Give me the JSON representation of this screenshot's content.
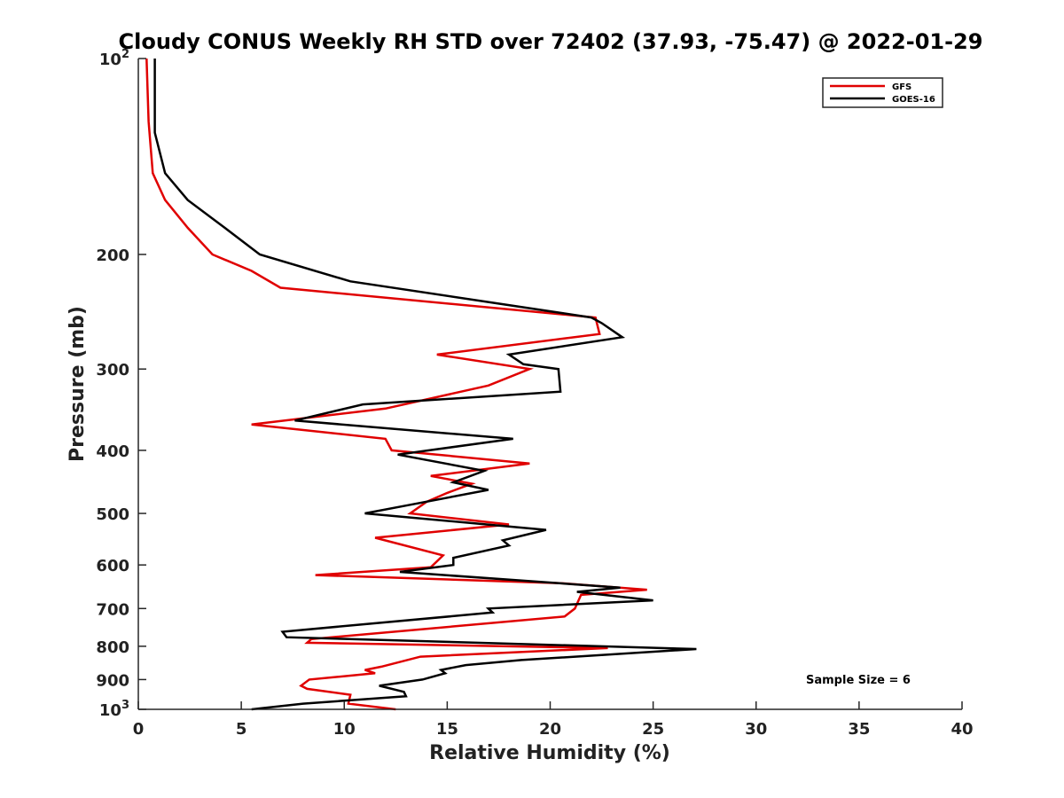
{
  "chart_data": {
    "type": "line",
    "title": "Cloudy CONUS Weekly RH STD over 72402 (37.93, -75.47) @ 2022-01-29",
    "xlabel": "Relative Humidity (%)",
    "ylabel": "Pressure (mb)",
    "xlim": [
      0,
      40
    ],
    "ylim": [
      100,
      1000
    ],
    "y_scale": "log",
    "y_reversed": true,
    "x_ticks": [
      0,
      5,
      10,
      15,
      20,
      25,
      30,
      35,
      40
    ],
    "y_ticks": [
      {
        "value": 100,
        "base": "10",
        "exp": "2"
      },
      {
        "value": 200,
        "label": "200"
      },
      {
        "value": 300,
        "label": "300"
      },
      {
        "value": 400,
        "label": "400"
      },
      {
        "value": 500,
        "label": "500"
      },
      {
        "value": 600,
        "label": "600"
      },
      {
        "value": 700,
        "label": "700"
      },
      {
        "value": 800,
        "label": "800"
      },
      {
        "value": 900,
        "label": "900"
      },
      {
        "value": 1000,
        "base": "10",
        "exp": "3"
      }
    ],
    "grid": false,
    "legend_position": "top-right",
    "annotation": "Sample Size = 6",
    "series": [
      {
        "name": "GFS",
        "color": "#e00000",
        "points": [
          [
            0.4,
            100
          ],
          [
            0.5,
            125
          ],
          [
            0.7,
            150
          ],
          [
            1.3,
            165
          ],
          [
            2.4,
            182
          ],
          [
            3.6,
            200
          ],
          [
            5.5,
            212
          ],
          [
            6.9,
            225
          ],
          [
            22.2,
            250
          ],
          [
            22.4,
            265
          ],
          [
            14.5,
            285
          ],
          [
            19.0,
            300
          ],
          [
            17.0,
            318
          ],
          [
            12.0,
            345
          ],
          [
            5.5,
            365
          ],
          [
            12.0,
            384
          ],
          [
            12.3,
            400
          ],
          [
            19.0,
            419
          ],
          [
            14.2,
            438
          ],
          [
            16.2,
            450
          ],
          [
            15.0,
            465
          ],
          [
            14.0,
            480
          ],
          [
            13.2,
            500
          ],
          [
            18.0,
            520
          ],
          [
            11.5,
            545
          ],
          [
            14.8,
            580
          ],
          [
            14.2,
            605
          ],
          [
            8.6,
            622
          ],
          [
            20.5,
            640
          ],
          [
            24.7,
            655
          ],
          [
            21.5,
            667
          ],
          [
            21.2,
            700
          ],
          [
            20.7,
            720
          ],
          [
            8.4,
            780
          ],
          [
            8.2,
            790
          ],
          [
            22.8,
            805
          ],
          [
            13.7,
            830
          ],
          [
            11.8,
            860
          ],
          [
            11.0,
            870
          ],
          [
            11.5,
            880
          ],
          [
            8.3,
            900
          ],
          [
            7.9,
            920
          ],
          [
            8.2,
            930
          ],
          [
            10.3,
            950
          ],
          [
            10.2,
            980
          ],
          [
            12.5,
            1000
          ]
        ]
      },
      {
        "name": "GOES-16",
        "color": "#000000",
        "points": [
          [
            0.8,
            100
          ],
          [
            0.8,
            125
          ],
          [
            0.8,
            130
          ],
          [
            1.3,
            150
          ],
          [
            2.4,
            165
          ],
          [
            4.2,
            182
          ],
          [
            5.9,
            200
          ],
          [
            10.3,
            220
          ],
          [
            22.0,
            250
          ],
          [
            22.5,
            255
          ],
          [
            23.5,
            268
          ],
          [
            18.0,
            285
          ],
          [
            18.7,
            295
          ],
          [
            20.4,
            300
          ],
          [
            20.5,
            325
          ],
          [
            10.9,
            340
          ],
          [
            7.6,
            360
          ],
          [
            18.2,
            384
          ],
          [
            12.6,
            406
          ],
          [
            16.8,
            430
          ],
          [
            15.3,
            448
          ],
          [
            17.0,
            460
          ],
          [
            13.2,
            485
          ],
          [
            11.0,
            500
          ],
          [
            19.8,
            530
          ],
          [
            17.7,
            550
          ],
          [
            18.0,
            560
          ],
          [
            15.3,
            585
          ],
          [
            15.3,
            600
          ],
          [
            12.7,
            615
          ],
          [
            23.4,
            650
          ],
          [
            21.3,
            660
          ],
          [
            25.0,
            680
          ],
          [
            17.0,
            700
          ],
          [
            17.2,
            710
          ],
          [
            7.0,
            760
          ],
          [
            7.2,
            775
          ],
          [
            27.1,
            808
          ],
          [
            18.6,
            840
          ],
          [
            15.9,
            855
          ],
          [
            14.7,
            870
          ],
          [
            14.9,
            880
          ],
          [
            13.8,
            900
          ],
          [
            11.7,
            920
          ],
          [
            12.9,
            940
          ],
          [
            13.0,
            955
          ],
          [
            8.0,
            980
          ],
          [
            5.5,
            1000
          ]
        ]
      }
    ]
  }
}
